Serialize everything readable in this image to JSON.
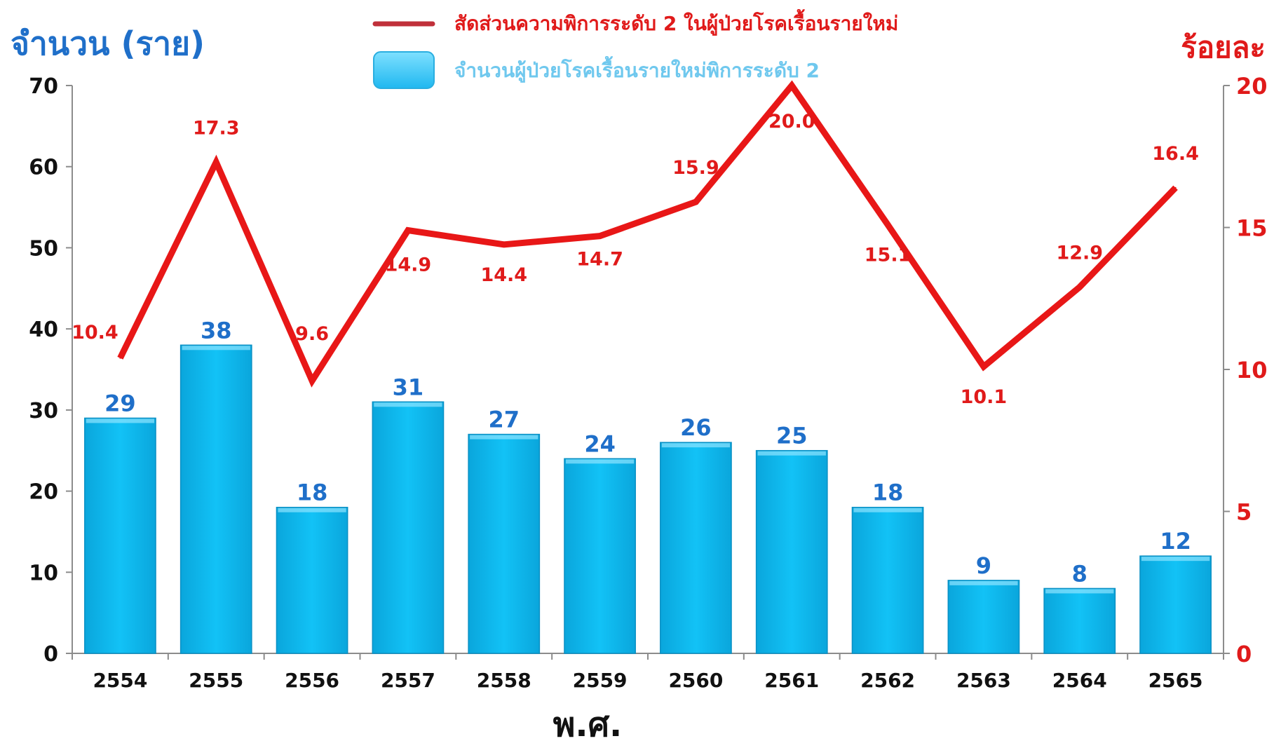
{
  "chart_data": {
    "type": "bar",
    "title": "",
    "xlabel": "พ.ศ.",
    "ylabel": "จำนวน (ราย)",
    "y2label": "ร้อยละ",
    "categories": [
      "2554",
      "2555",
      "2556",
      "2557",
      "2558",
      "2559",
      "2560",
      "2561",
      "2562",
      "2563",
      "2564",
      "2565"
    ],
    "ylim": [
      0,
      70
    ],
    "y2lim": [
      0,
      20
    ],
    "yticks": [
      0,
      10,
      20,
      30,
      40,
      50,
      60,
      70
    ],
    "y2ticks": [
      0,
      5,
      10,
      15,
      20
    ],
    "grid": false,
    "legend_position": "top-center",
    "series": [
      {
        "name": "จำนวนผู้ป่วยโรคเรื้อนรายใหม่พิการระดับ 2",
        "type": "bar",
        "axis": "left",
        "color": "#00B4F0",
        "label_color": "#1F6FC9",
        "values": [
          29,
          38,
          18,
          31,
          27,
          24,
          26,
          25,
          18,
          9,
          8,
          12
        ]
      },
      {
        "name": "สัดส่วนความพิการระดับ 2 ในผู้ป่วยโรคเรื้อนรายใหม่",
        "type": "line",
        "axis": "right",
        "color": "#E81717",
        "label_color": "#E01A1A",
        "values": [
          10.4,
          17.3,
          9.6,
          14.9,
          14.4,
          14.7,
          15.9,
          20.0,
          15.1,
          10.1,
          12.9,
          16.4
        ],
        "labels": [
          "10.4",
          "17.3",
          "9.6",
          "14.9",
          "14.4",
          "14.7",
          "15.9",
          "20.0",
          "15.1",
          "10.1",
          "12.9",
          "16.4"
        ]
      }
    ],
    "left_axis_color": "#1F6FC9",
    "right_axis_color": "#E01A1A"
  }
}
